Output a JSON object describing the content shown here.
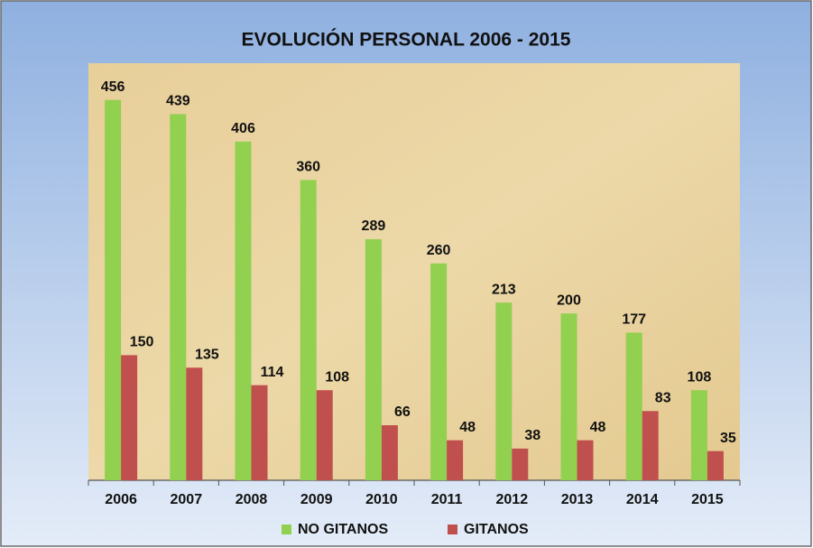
{
  "chart_data": {
    "type": "bar",
    "title": "EVOLUCIÓN PERSONAL 2006 - 2015",
    "categories": [
      "2006",
      "2007",
      "2008",
      "2009",
      "2010",
      "2011",
      "2012",
      "2013",
      "2014",
      "2015"
    ],
    "series": [
      {
        "name": "NO GITANOS",
        "color": "#92d050",
        "values": [
          456,
          439,
          406,
          360,
          289,
          260,
          213,
          200,
          177,
          108
        ]
      },
      {
        "name": "GITANOS",
        "color": "#c0504d",
        "values": [
          150,
          135,
          114,
          108,
          66,
          48,
          38,
          48,
          83,
          35
        ]
      }
    ],
    "ylim": [
      0,
      500
    ],
    "legend": "bottom"
  }
}
